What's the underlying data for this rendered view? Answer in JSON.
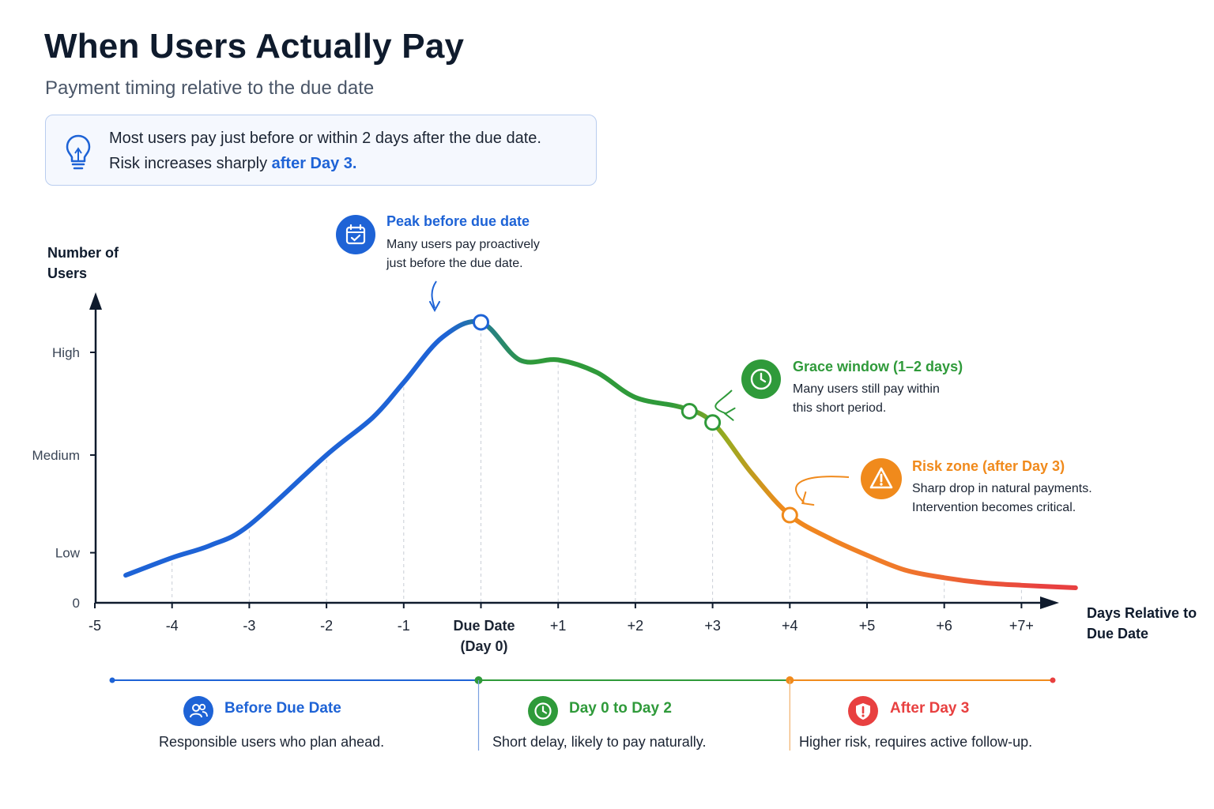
{
  "header": {
    "title": "When Users Actually Pay",
    "subtitle": "Payment timing relative to the due date"
  },
  "insight": {
    "icon": "lightbulb-icon",
    "line1": "Most users pay just before or within 2 days after the due date.",
    "line2_prefix": "Risk increases sharply ",
    "line2_highlight": "after Day 3."
  },
  "chart_data": {
    "type": "line",
    "ylabel": "Number of Users",
    "xlabel": "Days Relative to Due Date",
    "y_tick_labels": [
      {
        "label": "0",
        "value": 0
      },
      {
        "label": "Low",
        "value": 0.2
      },
      {
        "label": "Medium",
        "value": 0.59
      },
      {
        "label": "High",
        "value": 1.0
      }
    ],
    "x_ticks": [
      {
        "label": "-5",
        "value": -5
      },
      {
        "label": "-4",
        "value": -4
      },
      {
        "label": "-3",
        "value": -3
      },
      {
        "label": "-2",
        "value": -2
      },
      {
        "label": "-1",
        "value": -1
      },
      {
        "label": "Due Date",
        "label2": "(Day 0)",
        "value": 0
      },
      {
        "label": "+1",
        "value": 1
      },
      {
        "label": "+2",
        "value": 2
      },
      {
        "label": "+3",
        "value": 3
      },
      {
        "label": "+4",
        "value": 4
      },
      {
        "label": "+5",
        "value": 5
      },
      {
        "label": "+6",
        "value": 6
      },
      {
        "label": "+7+",
        "value": 7
      }
    ],
    "xlim": [
      -5,
      7.8
    ],
    "ylim": [
      0,
      1.22
    ],
    "series": [
      {
        "points": [
          [
            -4.6,
            0.11
          ],
          [
            -4.0,
            0.18
          ],
          [
            -3.5,
            0.23
          ],
          [
            -3.0,
            0.31
          ],
          [
            -2.0,
            0.59
          ],
          [
            -1.4,
            0.74
          ],
          [
            -1.0,
            0.88
          ],
          [
            -0.5,
            1.06
          ],
          [
            0.0,
            1.12
          ],
          [
            0.5,
            0.97
          ],
          [
            1.0,
            0.97
          ],
          [
            1.5,
            0.92
          ],
          [
            2.0,
            0.82
          ],
          [
            2.6,
            0.78
          ],
          [
            3.0,
            0.72
          ],
          [
            3.5,
            0.52
          ],
          [
            4.0,
            0.35
          ],
          [
            4.5,
            0.26
          ],
          [
            5.0,
            0.19
          ],
          [
            5.5,
            0.13
          ],
          [
            6.0,
            0.1
          ],
          [
            6.5,
            0.08
          ],
          [
            7.0,
            0.07
          ],
          [
            7.7,
            0.06
          ]
        ]
      }
    ],
    "markers": [
      0.0,
      2.7,
      3.0,
      4.0
    ],
    "colors": {
      "blue": "#1e63d6",
      "green": "#2f9a3a",
      "orange": "#f08a1c",
      "red": "#e84040"
    }
  },
  "annotations": {
    "peak": {
      "icon": "calendar-check-icon",
      "title": "Peak before due date",
      "text": "Many users pay proactively\njust before the due date."
    },
    "grace": {
      "icon": "clock-icon",
      "title": "Grace window (1–2 days)",
      "text": "Many users still pay within\nthis short period."
    },
    "risk": {
      "icon": "warning-icon",
      "title": "Risk zone (after Day 3)",
      "text": "Sharp drop in natural payments.\nIntervention becomes critical."
    }
  },
  "phases": [
    {
      "icon": "users-icon",
      "title": "Before Due Date",
      "desc": "Responsible users who plan ahead.",
      "color": "#1e63d6"
    },
    {
      "icon": "clock-icon",
      "title": "Day 0 to Day 2",
      "desc": "Short delay, likely to pay naturally.",
      "color": "#2f9a3a"
    },
    {
      "icon": "shield-alert-icon",
      "title": "After Day 3",
      "desc": "Higher risk, requires active follow-up.",
      "color": "#e84040"
    }
  ]
}
